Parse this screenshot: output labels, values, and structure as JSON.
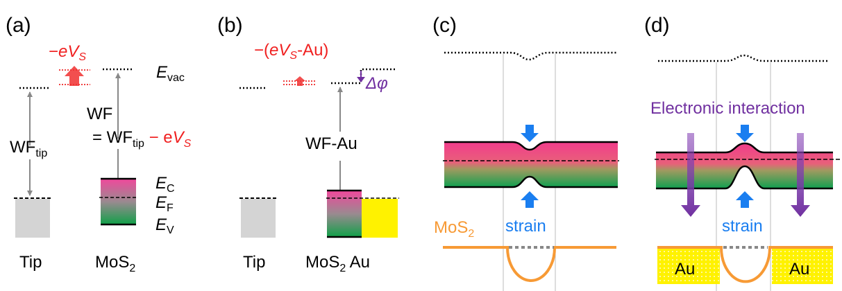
{
  "panel_a": {
    "label": "(a)",
    "shift": [
      "−",
      "e",
      "V",
      "S"
    ],
    "vac": [
      "E",
      "vac"
    ],
    "wf": "WF",
    "wf_eq": [
      "= WF",
      "tip",
      " − e",
      "V",
      "S"
    ],
    "wf_tip": [
      "WF",
      "tip"
    ],
    "ec": [
      "E",
      "C"
    ],
    "ef": [
      "E",
      "F"
    ],
    "ev": [
      "E",
      "V"
    ],
    "tip": "Tip",
    "mos2": [
      "MoS",
      "2"
    ]
  },
  "panel_b": {
    "label": "(b)",
    "shift": [
      "−(",
      "e",
      "V",
      "S",
      "-Au)"
    ],
    "dphi": "Δφ",
    "wf_au": "WF-Au",
    "tip": "Tip",
    "mos2_au": [
      "MoS",
      "2",
      " Au"
    ]
  },
  "panel_c": {
    "label": "(c)",
    "mos2": [
      "MoS",
      "2"
    ],
    "strain": "strain"
  },
  "panel_d": {
    "label": "(d)",
    "interaction": "Electronic interaction",
    "strain": "strain",
    "au_left": "Au",
    "au_right": "Au"
  }
}
